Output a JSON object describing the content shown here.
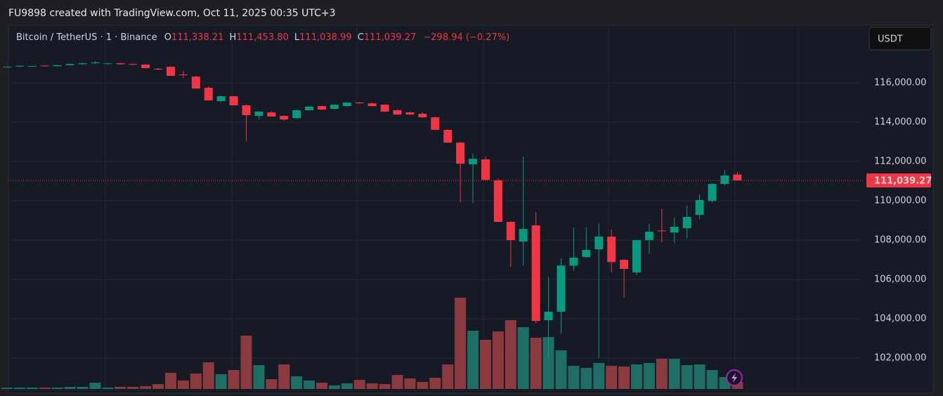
{
  "header": {
    "text": "FU9898 created with TradingView.com, Oct 11, 2025 00:35 UTC+3"
  },
  "chart_data": {
    "type": "candlestick",
    "symbol": "Bitcoin / TetherUS · 1 · Binance",
    "ohlc": [
      {
        "label": "O",
        "value": "111,338.21"
      },
      {
        "label": "H",
        "value": "111,453.80"
      },
      {
        "label": "L",
        "value": "111,038.99"
      },
      {
        "label": "C",
        "value": "111,039.27"
      }
    ],
    "change": "−298.94 (−0.27%)",
    "currency": "USDT",
    "up_color": "#089981",
    "down_color": "#f23645",
    "grid": true,
    "ylim": [
      100360,
      118930
    ],
    "yticks": [
      {
        "value": 102000,
        "label": "102,000.00"
      },
      {
        "value": 104000,
        "label": "104,000.00"
      },
      {
        "value": 106000,
        "label": "106,000.00"
      },
      {
        "value": 108000,
        "label": "108,000.00"
      },
      {
        "value": 110000,
        "label": "110,000.00"
      },
      {
        "value": 112000,
        "label": "112,000.00"
      },
      {
        "value": 114000,
        "label": "114,000.00"
      },
      {
        "value": 116000,
        "label": "116,000.00"
      }
    ],
    "last_price": {
      "value": 111039.27,
      "label": "111,039.27"
    },
    "categories": [
      null,
      null,
      null,
      null,
      null,
      null,
      null,
      null,
      null,
      null,
      null,
      null,
      null,
      null,
      null,
      null,
      null,
      null,
      null,
      null,
      null,
      null,
      null,
      null,
      null,
      null,
      null,
      null,
      null,
      null,
      null,
      null,
      null,
      null,
      null,
      null,
      null,
      null,
      null,
      null,
      null,
      null,
      null,
      null,
      null,
      null,
      null,
      null,
      null,
      null,
      null,
      null,
      null,
      null,
      null,
      null,
      null,
      null,
      null
    ],
    "open": [
      116800,
      116830,
      116850,
      116880,
      116850,
      116900,
      116950,
      117000,
      116980,
      117000,
      116960,
      116930,
      116720,
      116820,
      116430,
      116320,
      115750,
      115070,
      115320,
      114860,
      114320,
      114500,
      114320,
      114210,
      114610,
      114820,
      114680,
      114820,
      115000,
      114960,
      114890,
      114610,
      114500,
      114430,
      114250,
      113610,
      112960,
      111860,
      112110,
      111040,
      108930,
      107930,
      108750,
      103930,
      104360,
      106710,
      107140,
      107540,
      108180,
      107000,
      106360,
      108000,
      108490,
      108390,
      108610,
      109290,
      110000,
      110860,
      111338.21
    ],
    "high": [
      116850,
      116890,
      116890,
      116900,
      116920,
      116980,
      117020,
      117110,
      117020,
      117030,
      116990,
      116960,
      116760,
      116850,
      116600,
      116360,
      115820,
      115350,
      115360,
      114900,
      114560,
      114560,
      114360,
      114640,
      114820,
      114860,
      114920,
      115020,
      115030,
      114990,
      114920,
      114640,
      114540,
      114500,
      114290,
      113650,
      113000,
      112390,
      112250,
      111140,
      108960,
      112250,
      109430,
      106140,
      107070,
      108640,
      108640,
      108860,
      108540,
      107040,
      108030,
      108820,
      109610,
      109140,
      109750,
      110320,
      110900,
      111570,
      111453.8
    ],
    "low": [
      116780,
      116810,
      116830,
      116840,
      116830,
      116880,
      116930,
      116960,
      116950,
      116930,
      116920,
      116730,
      116650,
      116340,
      116250,
      115690,
      115100,
      115040,
      114840,
      113000,
      114140,
      114270,
      114070,
      114190,
      114590,
      114610,
      114660,
      114800,
      114940,
      114800,
      114520,
      114370,
      114370,
      114230,
      113590,
      112940,
      109930,
      109890,
      111040,
      108910,
      106640,
      106710,
      103790,
      102000,
      103250,
      106430,
      107100,
      102000,
      106360,
      105070,
      106210,
      107320,
      107890,
      107860,
      108100,
      109070,
      109930,
      110790,
      111038.99
    ],
    "close": [
      116820,
      116870,
      116860,
      116860,
      116900,
      116960,
      117000,
      117040,
      116990,
      116950,
      116950,
      116750,
      116680,
      116360,
      116390,
      115710,
      115110,
      115320,
      114860,
      114360,
      114540,
      114290,
      114140,
      114610,
      114790,
      114640,
      114890,
      115000,
      114960,
      114820,
      114540,
      114390,
      114390,
      114250,
      113610,
      112960,
      111890,
      112140,
      111070,
      108930,
      108000,
      108570,
      103890,
      104360,
      106710,
      107110,
      107500,
      108180,
      106890,
      106540,
      108000,
      108430,
      108460,
      108680,
      109180,
      110040,
      110860,
      111290,
      111039.27
    ],
    "volume": {
      "ylim": [
        0,
        140
      ],
      "up_color": "#1f6e66",
      "down_color": "#8b3a40",
      "values": [
        2,
        2,
        2,
        2,
        2,
        3,
        3,
        9,
        2,
        3,
        3,
        4,
        7,
        23,
        12,
        22,
        38,
        21,
        27,
        76,
        34,
        14,
        35,
        18,
        12,
        9,
        5,
        8,
        13,
        8,
        7,
        20,
        15,
        10,
        16,
        35,
        130,
        83,
        70,
        82,
        98,
        88,
        73,
        74,
        55,
        33,
        30,
        37,
        33,
        32,
        35,
        37,
        43,
        43,
        34,
        35,
        27,
        17,
        10
      ]
    }
  }
}
